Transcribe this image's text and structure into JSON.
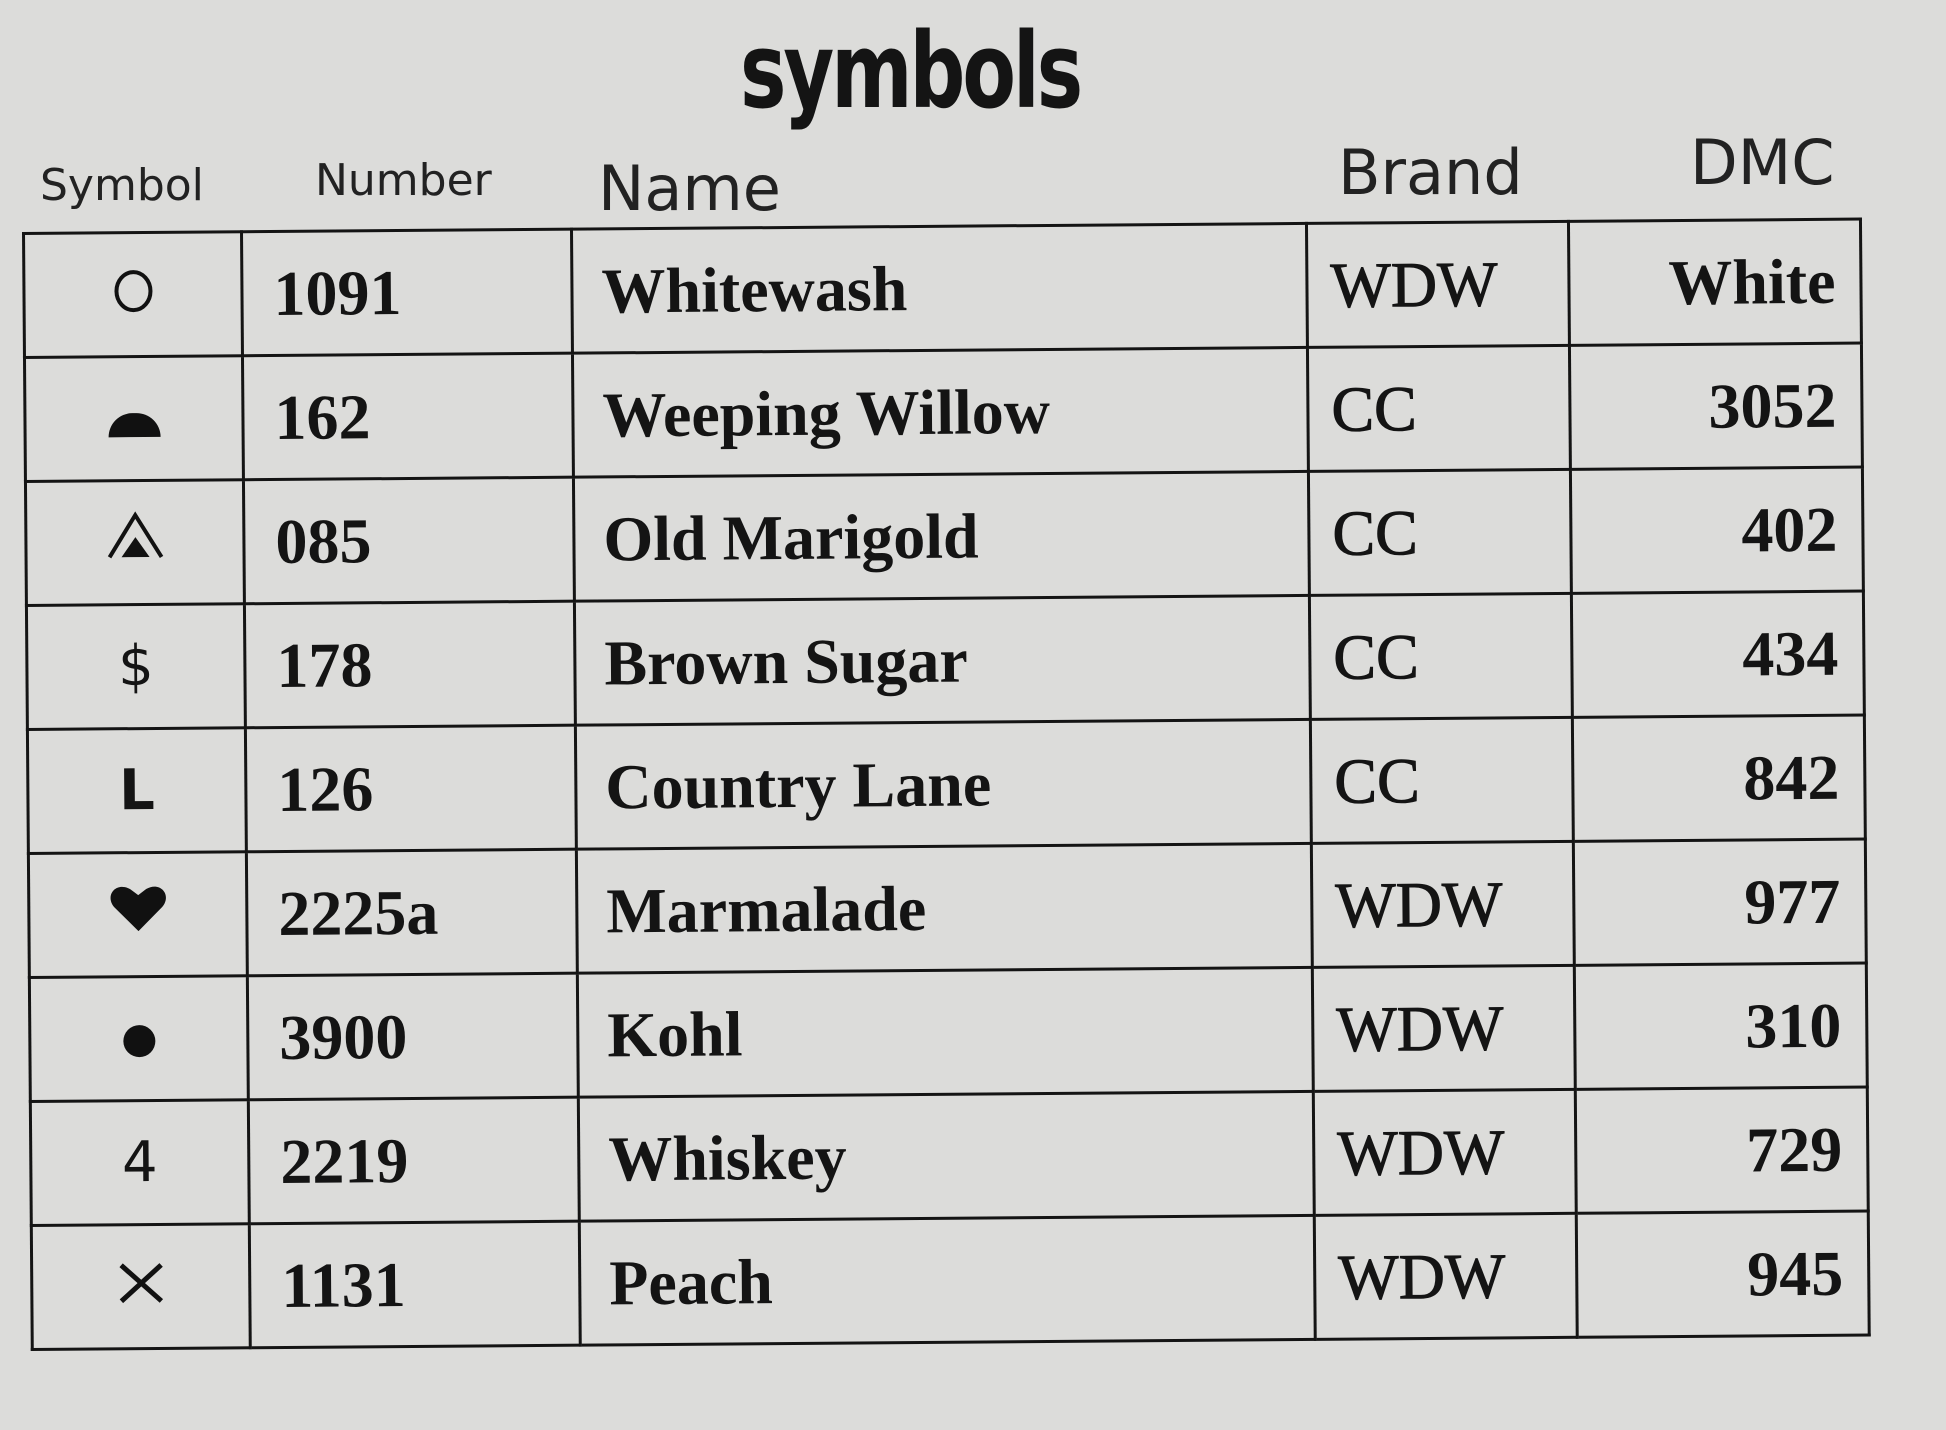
{
  "title": "symbols",
  "headers": {
    "symbol": "Symbol",
    "number": "Number",
    "name": "Name",
    "brand": "Brand",
    "dmc": "DMC"
  },
  "rows": [
    {
      "icon": "circle-outline-icon",
      "symbol": "",
      "number": "1091",
      "name": "Whitewash",
      "brand": "WDW",
      "dmc": "White"
    },
    {
      "icon": "half-circle-icon",
      "symbol": "",
      "number": "162",
      "name": "Weeping Willow",
      "brand": "CC",
      "dmc": "3052"
    },
    {
      "icon": "nested-triangle-icon",
      "symbol": "",
      "number": "085",
      "name": "Old Marigold",
      "brand": "CC",
      "dmc": "402"
    },
    {
      "icon": "dollar-icon",
      "symbol": "$",
      "number": "178",
      "name": "Brown Sugar",
      "brand": "CC",
      "dmc": "434"
    },
    {
      "icon": "letter-l-icon",
      "symbol": "L",
      "number": "126",
      "name": "Country Lane",
      "brand": "CC",
      "dmc": "842"
    },
    {
      "icon": "heart-icon",
      "symbol": "",
      "number": "2225a",
      "name": "Marmalade",
      "brand": "WDW",
      "dmc": "977"
    },
    {
      "icon": "dot-icon",
      "symbol": "",
      "number": "3900",
      "name": "Kohl",
      "brand": "WDW",
      "dmc": "310"
    },
    {
      "icon": "four-icon",
      "symbol": "4",
      "number": "2219",
      "name": "Whiskey",
      "brand": "WDW",
      "dmc": "729"
    },
    {
      "icon": "cross-icon",
      "symbol": "",
      "number": "1131",
      "name": "Peach",
      "brand": "WDW",
      "dmc": "945"
    }
  ]
}
